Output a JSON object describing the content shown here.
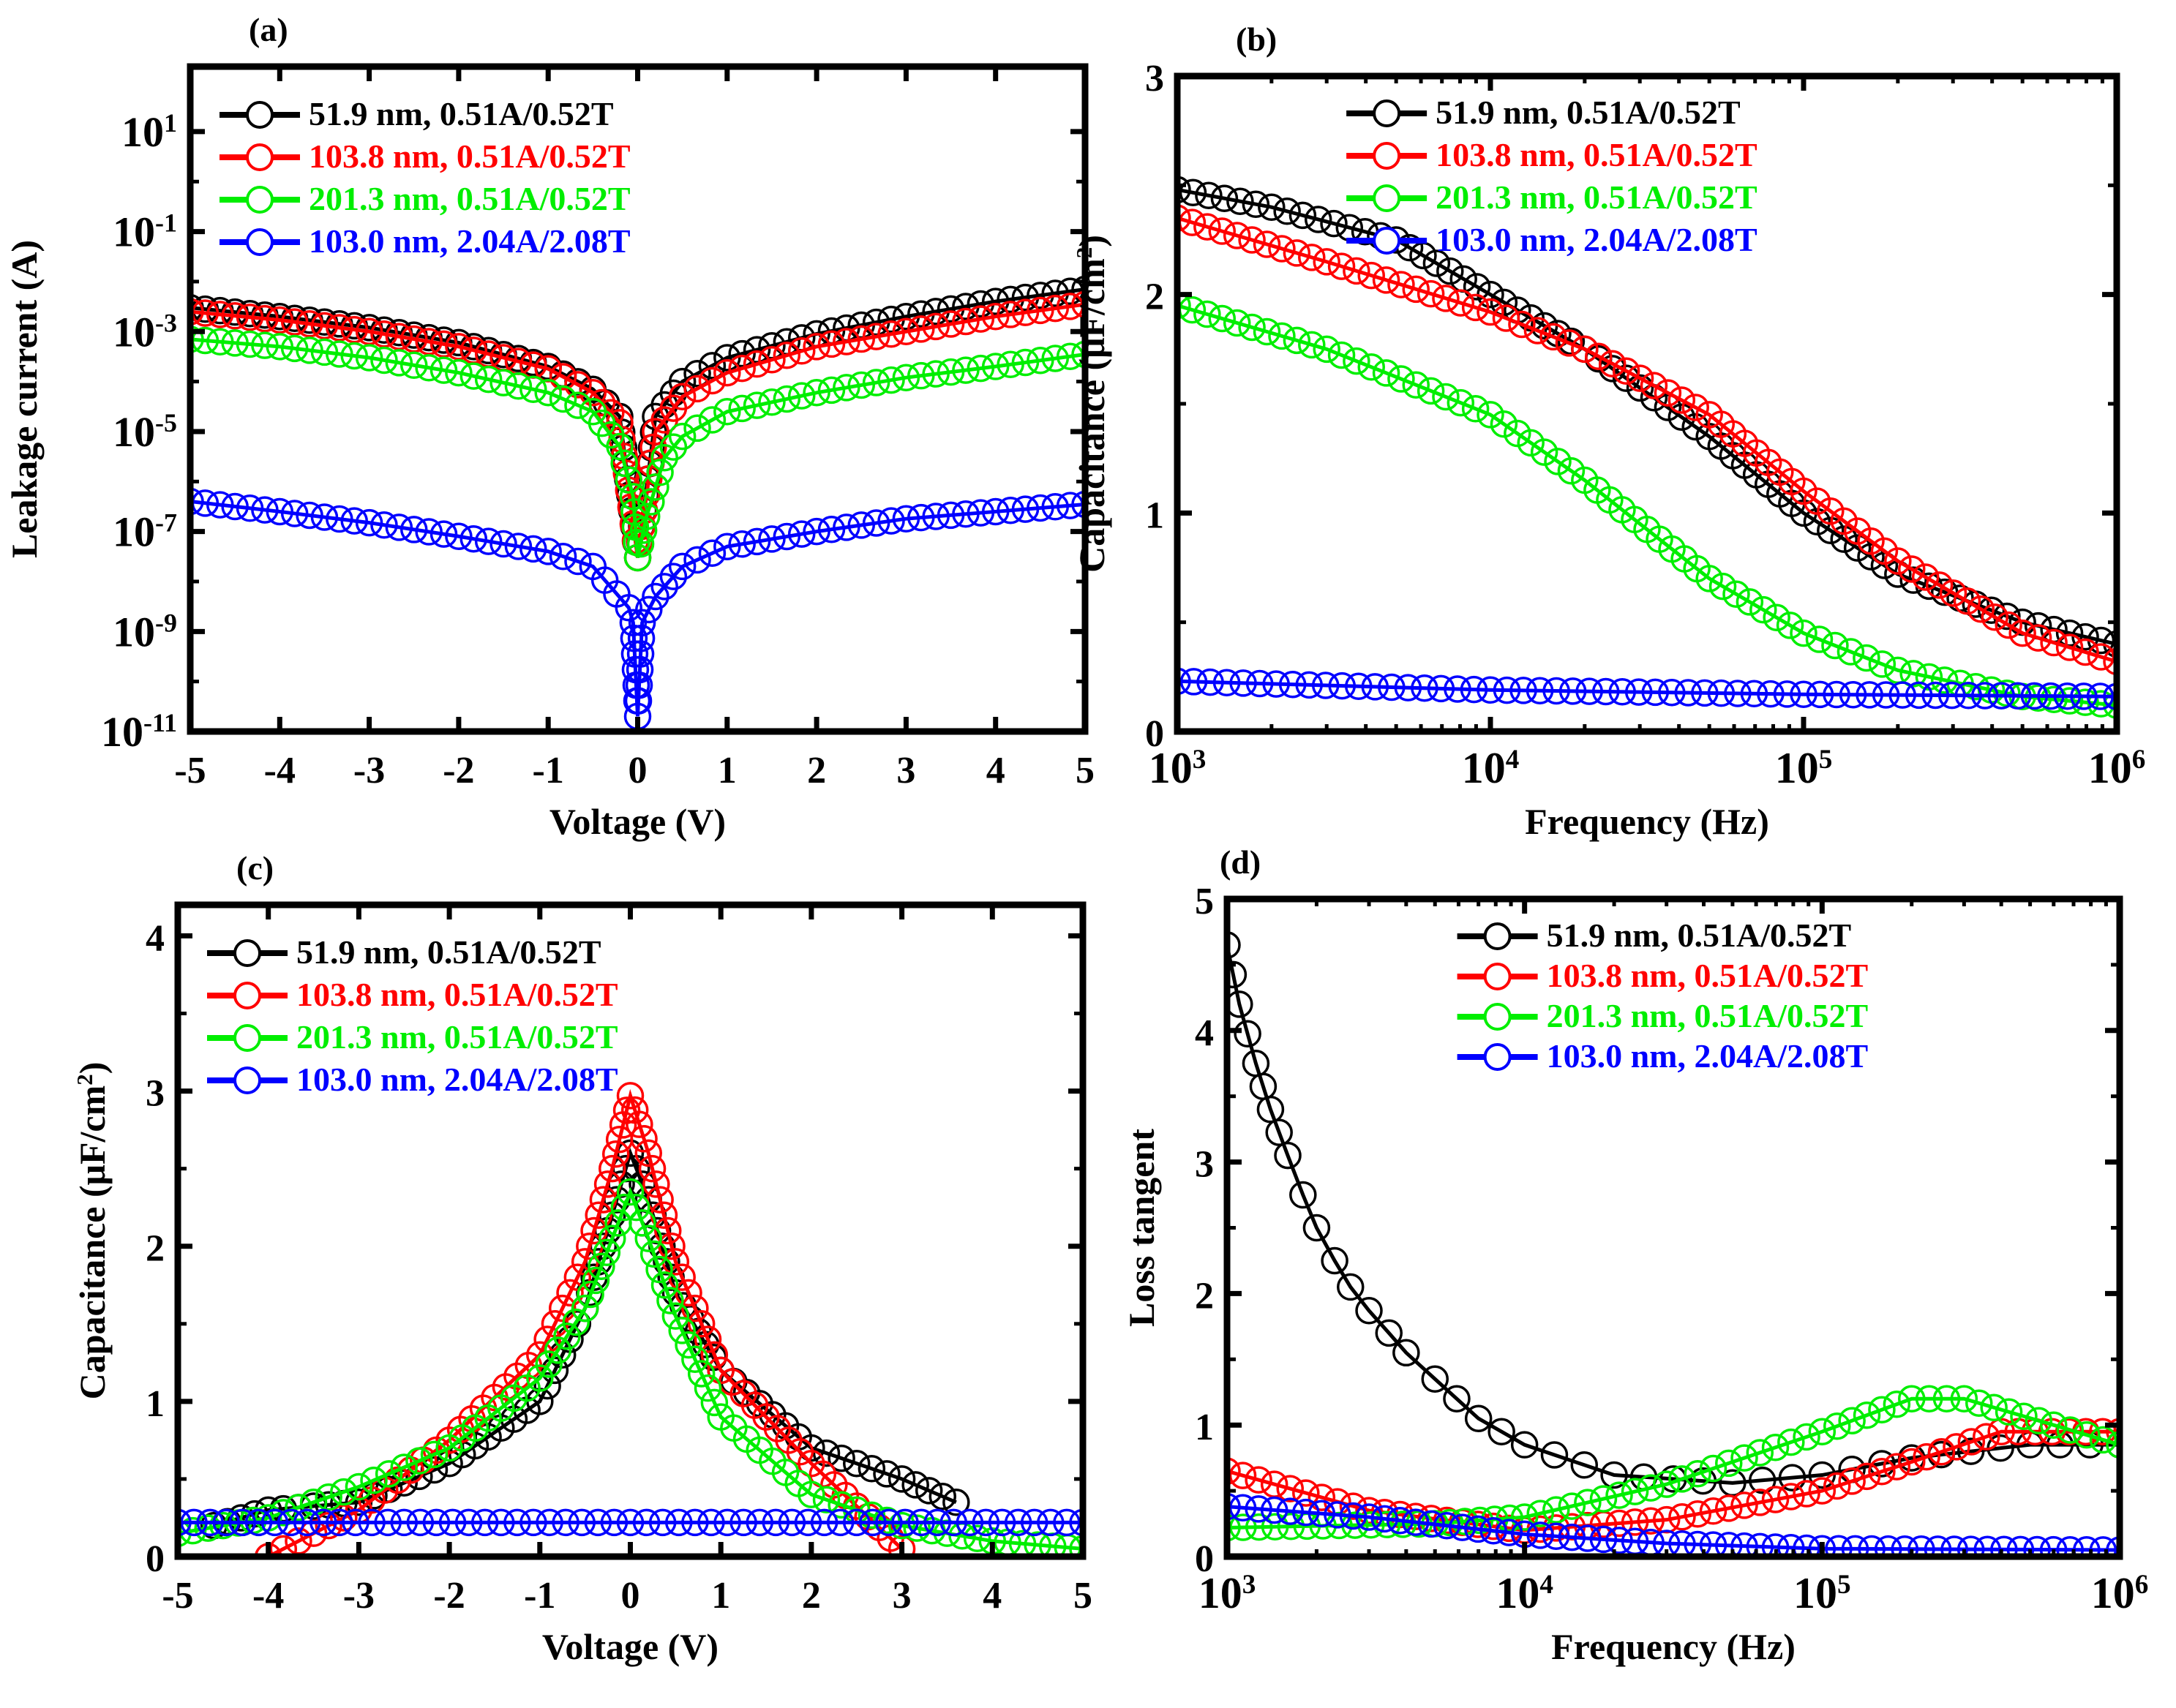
{
  "colors": {
    "black": "#000000",
    "red": "#ff0000",
    "green": "#00ee00",
    "blue": "#0000ff"
  },
  "chart_data": [
    {
      "panel_label": "(a)",
      "type": "scatter",
      "xlabel": "Voltage (V)",
      "ylabel": "Leakage current  (A)",
      "xscale": "linear",
      "yscale": "log",
      "xlim": [
        -5,
        5
      ],
      "ylim": [
        1e-11,
        200
      ],
      "xticks": [
        -5,
        -4,
        -3,
        -2,
        -1,
        0,
        1,
        2,
        3,
        4,
        5
      ],
      "xtick_labels": [
        "-5",
        "-4",
        "-3",
        "-2",
        "-1",
        "0",
        "1",
        "2",
        "3",
        "4",
        "5"
      ],
      "yticks": [
        1e-11,
        1e-09,
        1e-07,
        1e-05,
        0.001,
        0.1,
        10
      ],
      "ytick_labels": [
        "10^-11",
        "10^-9",
        "10^-7",
        "10^-5",
        "10^-3",
        "10^-1",
        "10^1"
      ],
      "legend_position": "top-left",
      "grid": false,
      "series": [
        {
          "name": "51.9 nm, 0.51A/0.52T",
          "color": "black",
          "points": [
            [
              -5,
              0.003
            ],
            [
              -4,
              0.002
            ],
            [
              -3,
              0.0012
            ],
            [
              -2,
              0.0006
            ],
            [
              -1,
              0.0002
            ],
            [
              -0.5,
              7e-05
            ],
            [
              -0.2,
              2e-05
            ],
            [
              0,
              3e-08
            ],
            [
              0.2,
              2e-05
            ],
            [
              0.5,
              0.0001
            ],
            [
              1,
              0.0003
            ],
            [
              2,
              0.0009
            ],
            [
              3,
              0.002
            ],
            [
              4,
              0.004
            ],
            [
              5,
              0.007
            ]
          ]
        },
        {
          "name": "103.8 nm, 0.51A/0.52T",
          "color": "red",
          "points": [
            [
              -5,
              0.0025
            ],
            [
              -4,
              0.0017
            ],
            [
              -3,
              0.001
            ],
            [
              -2,
              0.0005
            ],
            [
              -1,
              0.00018
            ],
            [
              -0.5,
              6e-05
            ],
            [
              -0.2,
              1.5e-05
            ],
            [
              0,
              3e-08
            ],
            [
              0.2,
              1e-05
            ],
            [
              0.5,
              5e-05
            ],
            [
              1,
              0.00015
            ],
            [
              2,
              0.0005
            ],
            [
              3,
              0.001
            ],
            [
              4,
              0.002
            ],
            [
              5,
              0.0035
            ]
          ]
        },
        {
          "name": "201.3 nm, 0.51A/0.52T",
          "color": "green",
          "points": [
            [
              -5,
              0.0007
            ],
            [
              -4,
              0.0005
            ],
            [
              -3,
              0.0003
            ],
            [
              -2,
              0.00015
            ],
            [
              -1,
              6e-05
            ],
            [
              -0.5,
              2.5e-05
            ],
            [
              -0.2,
              5e-06
            ],
            [
              -0.05,
              5e-07
            ],
            [
              0,
              3e-08
            ],
            [
              0.1,
              2e-07
            ],
            [
              0.3,
              3e-06
            ],
            [
              0.5,
              8e-06
            ],
            [
              1,
              2.5e-05
            ],
            [
              2,
              6e-05
            ],
            [
              3,
              0.00012
            ],
            [
              4,
              0.0002
            ],
            [
              5,
              0.00035
            ]
          ]
        },
        {
          "name": "103.0 nm, 2.04A/2.08T",
          "color": "blue",
          "points": [
            [
              -5,
              4e-07
            ],
            [
              -4,
              2.5e-07
            ],
            [
              -3,
              1.5e-07
            ],
            [
              -2,
              8e-08
            ],
            [
              -1,
              4e-08
            ],
            [
              -0.5,
              2e-08
            ],
            [
              -0.1,
              3e-09
            ],
            [
              -0.05,
              1.5e-09
            ],
            [
              0,
              2e-11
            ],
            [
              0.05,
              1.5e-09
            ],
            [
              0.2,
              5e-09
            ],
            [
              0.5,
              2e-08
            ],
            [
              1,
              5e-08
            ],
            [
              2,
              1e-07
            ],
            [
              3,
              1.8e-07
            ],
            [
              4,
              2.5e-07
            ],
            [
              5,
              3.5e-07
            ]
          ]
        }
      ]
    },
    {
      "panel_label": "(b)",
      "type": "scatter",
      "xlabel": "Frequency  (Hz)",
      "ylabel": "Capacitance  (μF/cm^2)",
      "xscale": "log",
      "yscale": "linear",
      "xlim": [
        1000,
        1000000
      ],
      "ylim": [
        0,
        3
      ],
      "xticks": [
        1000,
        10000,
        100000,
        1000000
      ],
      "xtick_labels": [
        "10^3",
        "10^4",
        "10^5",
        "10^6"
      ],
      "yticks": [
        0,
        1,
        2,
        3
      ],
      "ytick_labels": [
        "0",
        "1",
        "2",
        "3"
      ],
      "legend_position": "top-right",
      "grid": false,
      "series": [
        {
          "name": "51.9 nm, 0.51A/0.52T",
          "color": "black",
          "points": [
            [
              1000,
              2.48
            ],
            [
              2000,
              2.4
            ],
            [
              5000,
              2.25
            ],
            [
              10000,
              2.0
            ],
            [
              20000,
              1.75
            ],
            [
              50000,
              1.35
            ],
            [
              100000,
              1.0
            ],
            [
              200000,
              0.72
            ],
            [
              500000,
              0.5
            ],
            [
              1000000,
              0.4
            ]
          ]
        },
        {
          "name": "103.8 nm, 0.51A/0.52T",
          "color": "red",
          "points": [
            [
              1000,
              2.35
            ],
            [
              3000,
              2.15
            ],
            [
              10000,
              1.92
            ],
            [
              20000,
              1.75
            ],
            [
              50000,
              1.45
            ],
            [
              100000,
              1.1
            ],
            [
              200000,
              0.78
            ],
            [
              500000,
              0.45
            ],
            [
              1000000,
              0.32
            ]
          ]
        },
        {
          "name": "201.3 nm, 0.51A/0.52T",
          "color": "green",
          "points": [
            [
              1000,
              1.95
            ],
            [
              3000,
              1.75
            ],
            [
              10000,
              1.45
            ],
            [
              20000,
              1.15
            ],
            [
              50000,
              0.7
            ],
            [
              100000,
              0.45
            ],
            [
              200000,
              0.28
            ],
            [
              500000,
              0.16
            ],
            [
              1000000,
              0.12
            ]
          ]
        },
        {
          "name": "103.0 nm, 2.04A/2.08T",
          "color": "blue",
          "points": [
            [
              1000,
              0.23
            ],
            [
              10000,
              0.19
            ],
            [
              100000,
              0.17
            ],
            [
              1000000,
              0.16
            ]
          ]
        }
      ]
    },
    {
      "panel_label": "(c)",
      "type": "scatter",
      "xlabel": "Voltage (V)",
      "ylabel": "Capacitance  (μF/cm^2)",
      "xscale": "linear",
      "yscale": "linear",
      "xlim": [
        -5,
        5
      ],
      "ylim": [
        0,
        4.2
      ],
      "xticks": [
        -5,
        -4,
        -3,
        -2,
        -1,
        0,
        1,
        2,
        3,
        4,
        5
      ],
      "xtick_labels": [
        "-5",
        "-4",
        "-3",
        "-2",
        "-1",
        "0",
        "1",
        "2",
        "3",
        "4",
        "5"
      ],
      "yticks": [
        0,
        1,
        2,
        3,
        4
      ],
      "ytick_labels": [
        "0",
        "1",
        "2",
        "3",
        "4"
      ],
      "legend_position": "top-left",
      "grid": false,
      "series": [
        {
          "name": "51.9 nm, 0.51A/0.52T",
          "color": "black",
          "points": [
            [
              -4.6,
              0.2
            ],
            [
              -4,
              0.3
            ],
            [
              -3,
              0.35
            ],
            [
              -2,
              0.6
            ],
            [
              -1,
              1.0
            ],
            [
              -0.5,
              1.6
            ],
            [
              -0.2,
              2.2
            ],
            [
              0,
              2.6
            ],
            [
              0.2,
              2.3
            ],
            [
              0.5,
              1.7
            ],
            [
              1,
              1.2
            ],
            [
              2,
              0.7
            ],
            [
              3,
              0.5
            ],
            [
              3.6,
              0.35
            ]
          ]
        },
        {
          "name": "103.8 nm, 0.51A/0.52T",
          "color": "red",
          "points": [
            [
              -4,
              0.0
            ],
            [
              -3,
              0.3
            ],
            [
              -2,
              0.75
            ],
            [
              -1,
              1.3
            ],
            [
              -0.5,
              1.9
            ],
            [
              -0.2,
              2.5
            ],
            [
              0,
              2.97
            ],
            [
              0.2,
              2.6
            ],
            [
              0.5,
              1.9
            ],
            [
              1,
              1.2
            ],
            [
              2,
              0.6
            ],
            [
              3,
              0.05
            ]
          ]
        },
        {
          "name": "201.3 nm, 0.51A/0.52T",
          "color": "green",
          "points": [
            [
              -5,
              0.15
            ],
            [
              -4,
              0.25
            ],
            [
              -3,
              0.45
            ],
            [
              -2,
              0.7
            ],
            [
              -1,
              1.15
            ],
            [
              -0.5,
              1.6
            ],
            [
              -0.2,
              2.05
            ],
            [
              0,
              2.35
            ],
            [
              0.2,
              2.05
            ],
            [
              0.5,
              1.55
            ],
            [
              1,
              0.9
            ],
            [
              2,
              0.4
            ],
            [
              3,
              0.2
            ],
            [
              4,
              0.1
            ],
            [
              5,
              0.05
            ]
          ]
        },
        {
          "name": "103.0 nm, 2.04A/2.08T",
          "color": "blue",
          "points": [
            [
              -5,
              0.22
            ],
            [
              0,
              0.22
            ],
            [
              5,
              0.22
            ]
          ]
        }
      ]
    },
    {
      "panel_label": "(d)",
      "type": "scatter",
      "xlabel": "Frequency  (Hz)",
      "ylabel": "Loss tangent",
      "xscale": "log",
      "yscale": "linear",
      "xlim": [
        1000,
        1000000
      ],
      "ylim": [
        0,
        5
      ],
      "xticks": [
        1000,
        10000,
        100000,
        1000000
      ],
      "xtick_labels": [
        "10^3",
        "10^4",
        "10^5",
        "10^6"
      ],
      "yticks": [
        0,
        1,
        2,
        3,
        4,
        5
      ],
      "ytick_labels": [
        "0",
        "1",
        "2",
        "3",
        "4",
        "5"
      ],
      "legend_position": "top-right",
      "grid": false,
      "series": [
        {
          "name": "51.9 nm, 0.51A/0.52T",
          "color": "black",
          "points": [
            [
              1000,
              4.65
            ],
            [
              1100,
              4.2
            ],
            [
              1250,
              3.75
            ],
            [
              1400,
              3.4
            ],
            [
              1600,
              3.05
            ],
            [
              1800,
              2.75
            ],
            [
              2000,
              2.5
            ],
            [
              2300,
              2.25
            ],
            [
              2600,
              2.05
            ],
            [
              3000,
              1.87
            ],
            [
              3500,
              1.7
            ],
            [
              4000,
              1.55
            ],
            [
              5000,
              1.35
            ],
            [
              7000,
              1.05
            ],
            [
              10000,
              0.85
            ],
            [
              20000,
              0.62
            ],
            [
              50000,
              0.56
            ],
            [
              100000,
              0.62
            ],
            [
              200000,
              0.75
            ],
            [
              500000,
              0.85
            ],
            [
              1000000,
              0.85
            ]
          ]
        },
        {
          "name": "103.8 nm, 0.51A/0.52T",
          "color": "red",
          "points": [
            [
              1000,
              0.65
            ],
            [
              3000,
              0.35
            ],
            [
              10000,
              0.2
            ],
            [
              30000,
              0.28
            ],
            [
              100000,
              0.5
            ],
            [
              200000,
              0.72
            ],
            [
              400000,
              0.95
            ],
            [
              1000000,
              0.95
            ]
          ]
        },
        {
          "name": "201.3 nm, 0.51A/0.52T",
          "color": "green",
          "points": [
            [
              1000,
              0.22
            ],
            [
              5000,
              0.25
            ],
            [
              10000,
              0.3
            ],
            [
              30000,
              0.55
            ],
            [
              100000,
              0.95
            ],
            [
              200000,
              1.2
            ],
            [
              300000,
              1.2
            ],
            [
              600000,
              1.0
            ],
            [
              1000000,
              0.85
            ]
          ]
        },
        {
          "name": "103.0 nm, 2.04A/2.08T",
          "color": "blue",
          "points": [
            [
              1000,
              0.38
            ],
            [
              3000,
              0.3
            ],
            [
              10000,
              0.17
            ],
            [
              30000,
              0.1
            ],
            [
              100000,
              0.06
            ],
            [
              1000000,
              0.05
            ]
          ]
        }
      ]
    }
  ]
}
